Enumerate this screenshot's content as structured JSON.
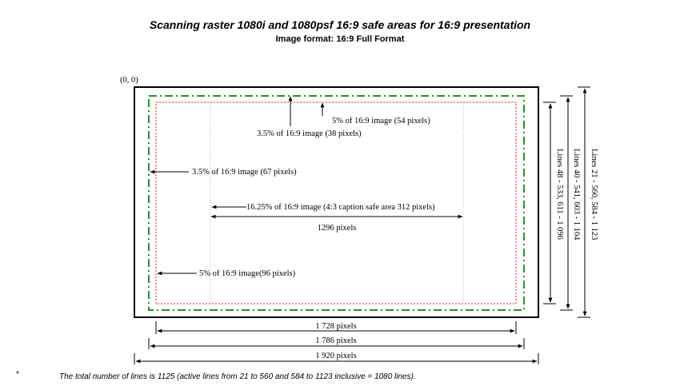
{
  "title": "Scanning raster 1080i and 1080psf 16:9 safe areas for 16:9 presentation",
  "subtitle": "Image format: 16:9 Full Format",
  "origin_label": "(0, 0)",
  "annotations": {
    "top_5pct": "5% of 16:9 image  (54 pixels)",
    "top_3_5pct": "3.5% of 16:9 image  (38 pixels)",
    "left_3_5pct": "3.5% of 16:9 image (67 pixels)",
    "center_16_25pct": "16.25% of 16:9 image (4:3 caption safe area 312 pixels)",
    "center_width": "1296 pixels",
    "left_5pct": "5% of 16:9 image(96 pixels)"
  },
  "bottom_dimensions": {
    "d1728": "1 728 pixels",
    "d1786": "1 786 pixels",
    "d1920": "1 920 pixels"
  },
  "right_dimensions": {
    "lines_48": "Lines 48 - 533, 611 - 1 096",
    "lines_40": "Lines 40 - 541, 603 - 1 104",
    "lines_21": "Lines 21 - 560, 584 - 1 123"
  },
  "footnote_mark": "*",
  "footnote": "The total number of lines is 1125 (active lines from 21 to 560 and 584 to 1123 inclusive = 1080 lines).",
  "colors": {
    "outer_frame": "#000000",
    "action_safe": "#1a9c1a",
    "graphics_safe": "#e01c1c",
    "caption_safe": "#b0b0b0"
  }
}
